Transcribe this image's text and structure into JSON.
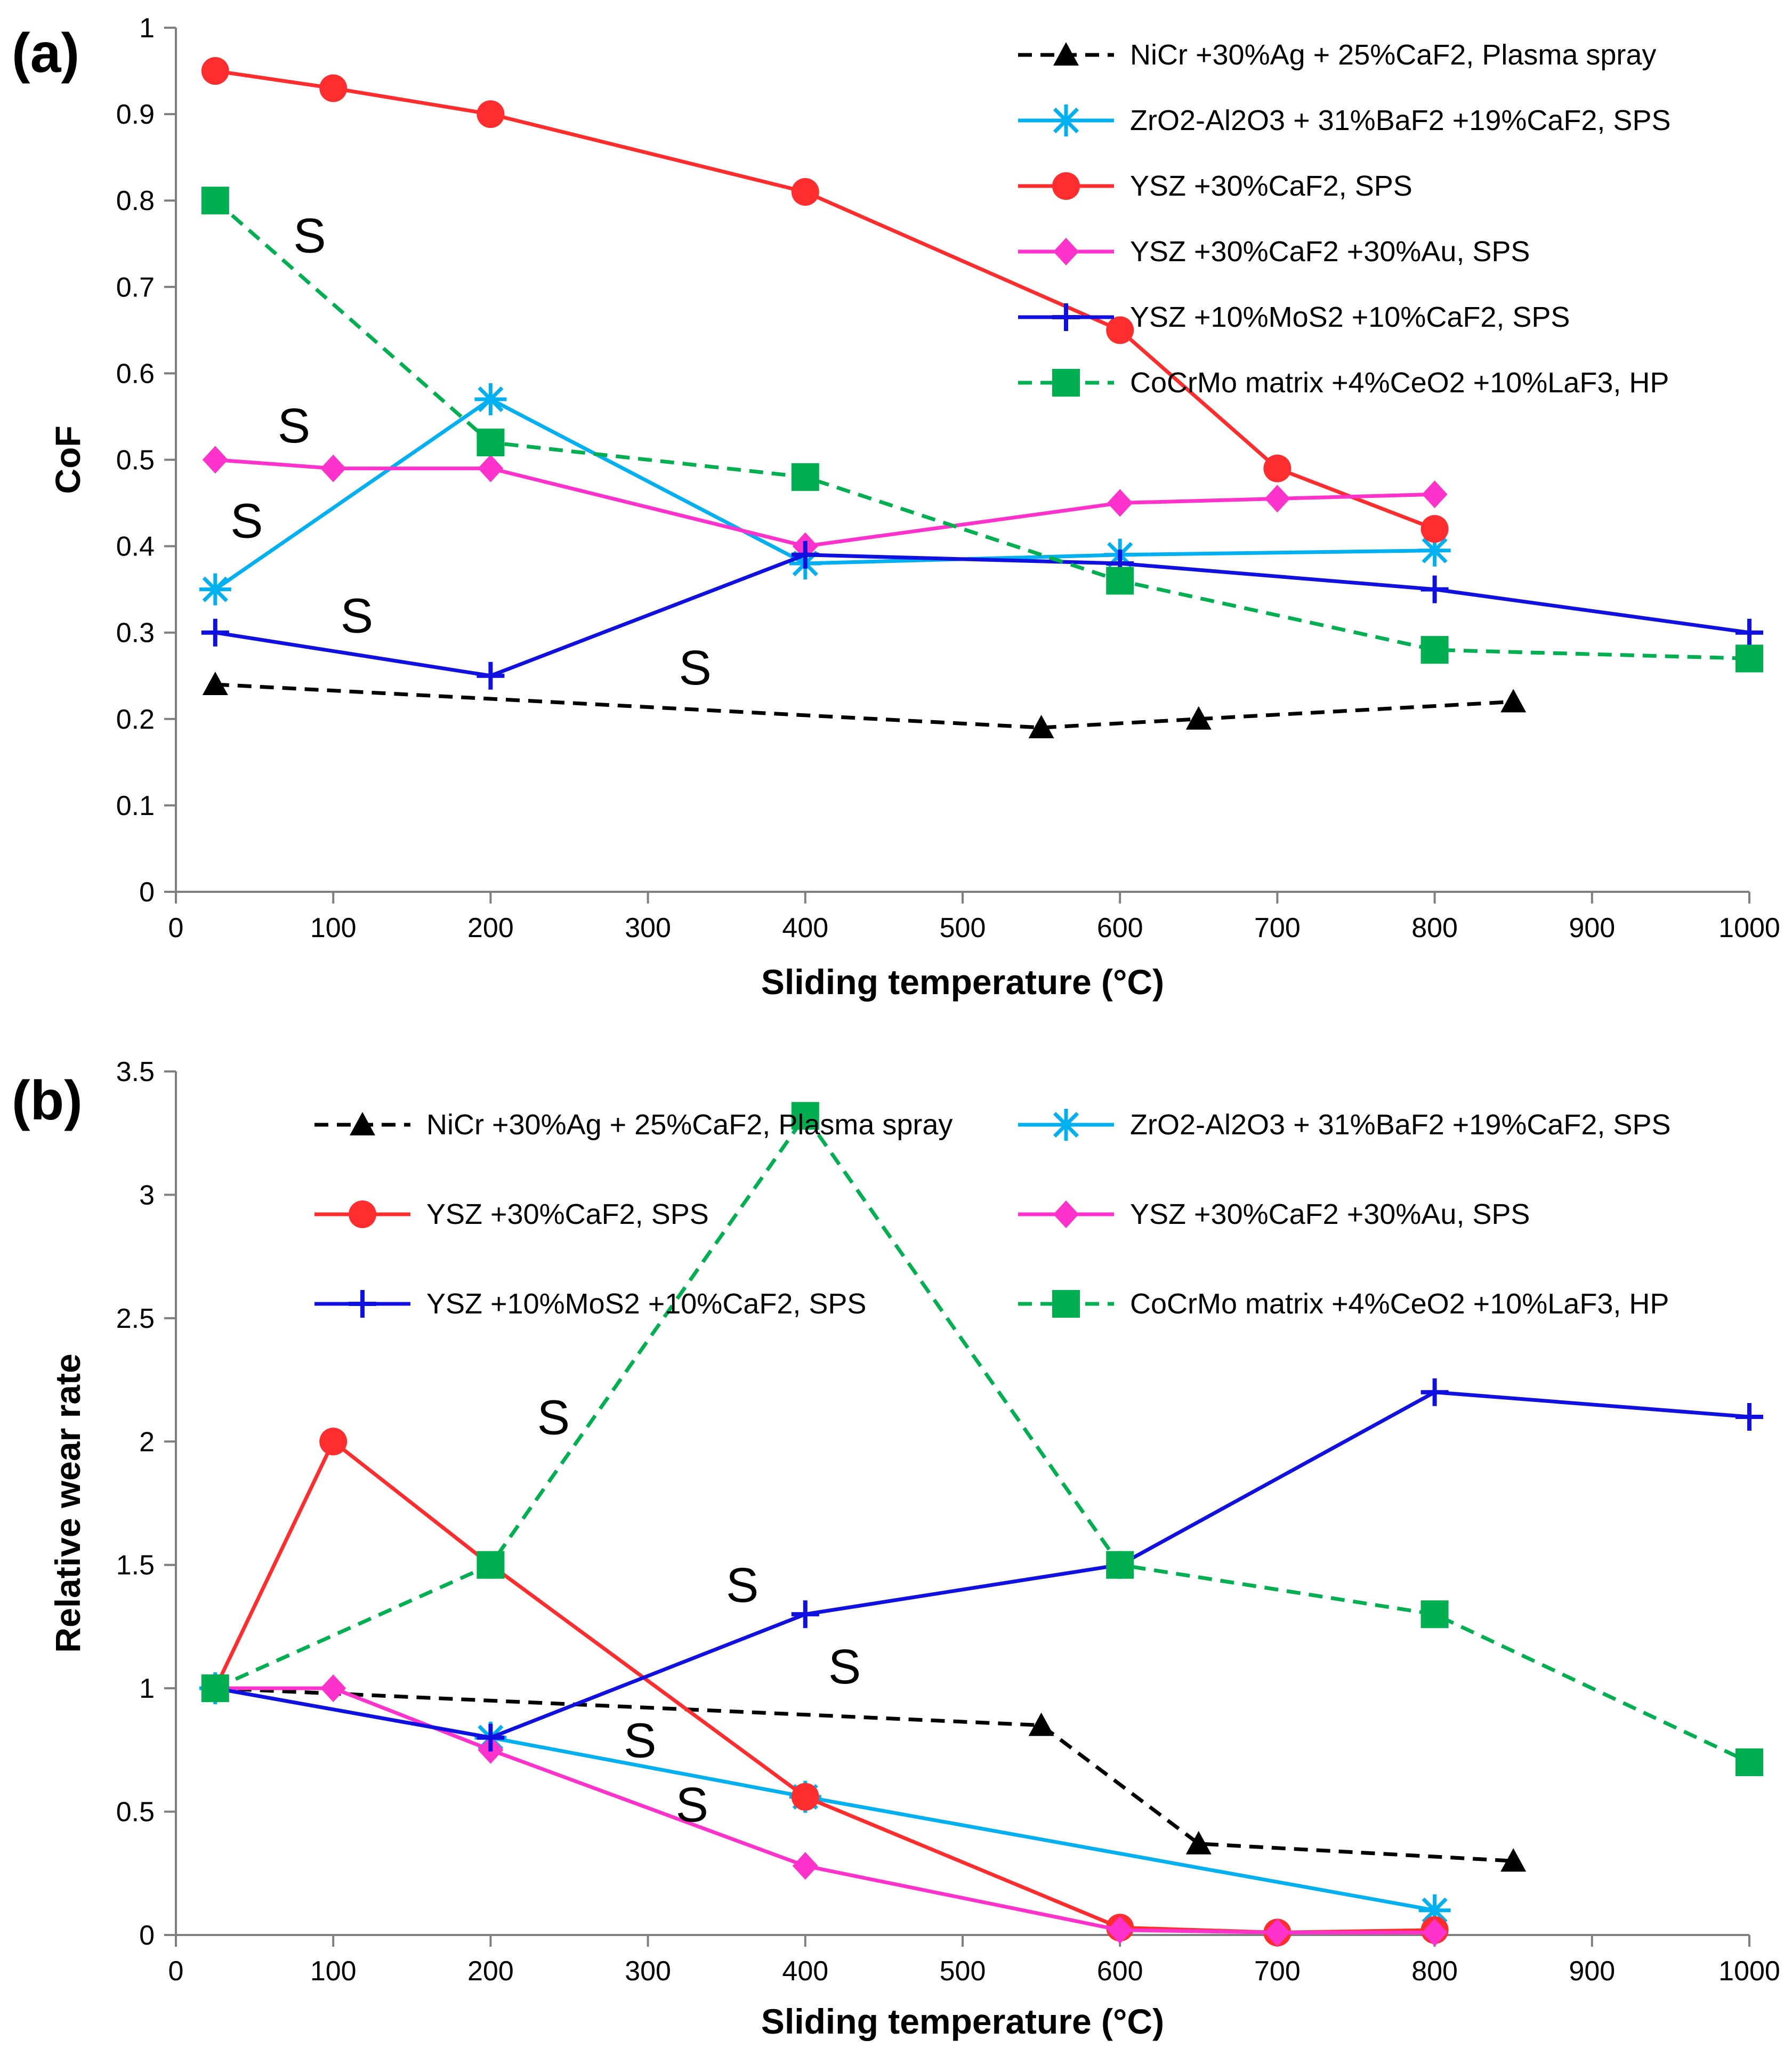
{
  "figure": {
    "panels": [
      "(a)",
      "(b)"
    ]
  },
  "colors": {
    "black": "#000000",
    "cyan": "#00b0f0",
    "red": "#ff2d2d",
    "magenta": "#ff33cc",
    "blue": "#1010e0",
    "green": "#00b050"
  },
  "chart_data": [
    {
      "type": "line",
      "panel_label": "(a)",
      "title": "",
      "xlabel": "Sliding temperature (°C)",
      "ylabel": "CoF",
      "xlim": [
        0,
        1000
      ],
      "ylim": [
        0,
        1
      ],
      "xticks": [
        "0",
        "100",
        "200",
        "300",
        "400",
        "500",
        "600",
        "700",
        "800",
        "900",
        "1000"
      ],
      "yticks": [
        "0",
        "0.1",
        "0.2",
        "0.3",
        "0.4",
        "0.5",
        "0.6",
        "0.7",
        "0.8",
        "0.9",
        "1"
      ],
      "grid": false,
      "legend_position": "top-right",
      "legend_columns": 1,
      "series": [
        {
          "name": "NiCr +30%Ag + 25%CaF2, Plasma spray",
          "color": "#000000",
          "dash": true,
          "marker": "triangle",
          "x": [
            25,
            550,
            650,
            850
          ],
          "y": [
            0.24,
            0.19,
            0.2,
            0.22
          ]
        },
        {
          "name": "ZrO2-Al2O3 + 31%BaF2 +19%CaF2, SPS",
          "color": "#00b0f0",
          "dash": false,
          "marker": "asterisk",
          "x": [
            25,
            200,
            400,
            600,
            800
          ],
          "y": [
            0.35,
            0.57,
            0.38,
            0.39,
            0.395
          ]
        },
        {
          "name": "YSZ +30%CaF2, SPS",
          "color": "#ff2d2d",
          "dash": false,
          "marker": "circle",
          "x": [
            25,
            100,
            200,
            400,
            600,
            700,
            800
          ],
          "y": [
            0.95,
            0.93,
            0.9,
            0.81,
            0.65,
            0.49,
            0.42
          ]
        },
        {
          "name": "YSZ +30%CaF2 +30%Au, SPS",
          "color": "#ff33cc",
          "dash": false,
          "marker": "diamond",
          "x": [
            25,
            100,
            200,
            400,
            600,
            700,
            800
          ],
          "y": [
            0.5,
            0.49,
            0.49,
            0.4,
            0.45,
            0.455,
            0.46
          ]
        },
        {
          "name": "YSZ +10%MoS2 +10%CaF2, SPS",
          "color": "#1010e0",
          "dash": false,
          "marker": "plus",
          "x": [
            25,
            200,
            400,
            600,
            800,
            1000
          ],
          "y": [
            0.3,
            0.25,
            0.39,
            0.38,
            0.35,
            0.3
          ]
        },
        {
          "name": "CoCrMo matrix +4%CeO2 +10%LaF3, HP",
          "color": "#00b050",
          "dash": true,
          "marker": "square",
          "x": [
            25,
            200,
            400,
            600,
            800,
            1000
          ],
          "y": [
            0.8,
            0.52,
            0.48,
            0.36,
            0.28,
            0.27
          ]
        }
      ],
      "annotations": [
        {
          "text": "S",
          "x": 85,
          "y": 0.74
        },
        {
          "text": "S",
          "x": 75,
          "y": 0.52
        },
        {
          "text": "S",
          "x": 45,
          "y": 0.41
        },
        {
          "text": "S",
          "x": 115,
          "y": 0.3
        },
        {
          "text": "S",
          "x": 330,
          "y": 0.24
        }
      ]
    },
    {
      "type": "line",
      "panel_label": "(b)",
      "title": "",
      "xlabel": "Sliding temperature (°C)",
      "ylabel": "Relative wear rate",
      "xlim": [
        0,
        1000
      ],
      "ylim": [
        0,
        3.5
      ],
      "xticks": [
        "0",
        "100",
        "200",
        "300",
        "400",
        "500",
        "600",
        "700",
        "800",
        "900",
        "1000"
      ],
      "yticks": [
        "0",
        "0.5",
        "1",
        "1.5",
        "2",
        "2.5",
        "3",
        "3.5"
      ],
      "grid": false,
      "legend_position": "top",
      "legend_columns": 2,
      "series": [
        {
          "name": "NiCr +30%Ag + 25%CaF2, Plasma spray",
          "color": "#000000",
          "dash": true,
          "marker": "triangle",
          "x": [
            25,
            550,
            650,
            850
          ],
          "y": [
            1.0,
            0.85,
            0.37,
            0.3
          ]
        },
        {
          "name": "ZrO2-Al2O3 + 31%BaF2 +19%CaF2, SPS",
          "color": "#00b0f0",
          "dash": false,
          "marker": "asterisk",
          "x": [
            25,
            200,
            400,
            800
          ],
          "y": [
            1.0,
            0.8,
            0.56,
            0.1
          ]
        },
        {
          "name": "YSZ +30%CaF2, SPS",
          "color": "#ff2d2d",
          "dash": false,
          "marker": "circle",
          "x": [
            25,
            100,
            200,
            400,
            600,
            700,
            800
          ],
          "y": [
            1.0,
            2.0,
            1.5,
            0.56,
            0.03,
            0.01,
            0.02
          ]
        },
        {
          "name": "YSZ +30%CaF2 +30%Au, SPS",
          "color": "#ff33cc",
          "dash": false,
          "marker": "diamond",
          "x": [
            25,
            100,
            200,
            400,
            600,
            700,
            800
          ],
          "y": [
            1.0,
            1.0,
            0.75,
            0.28,
            0.02,
            0.01,
            0.01
          ]
        },
        {
          "name": "YSZ +10%MoS2 +10%CaF2, SPS",
          "color": "#1010e0",
          "dash": false,
          "marker": "plus",
          "x": [
            25,
            200,
            400,
            600,
            800,
            1000
          ],
          "y": [
            1.0,
            0.8,
            1.3,
            1.5,
            2.2,
            2.1
          ]
        },
        {
          "name": "CoCrMo matrix +4%CeO2 +10%LaF3, HP",
          "color": "#00b050",
          "dash": true,
          "marker": "square",
          "x": [
            25,
            200,
            400,
            600,
            800,
            1000
          ],
          "y": [
            1.0,
            1.5,
            3.32,
            1.5,
            1.3,
            0.7
          ]
        }
      ],
      "annotations": [
        {
          "text": "S",
          "x": 240,
          "y": 2.03
        },
        {
          "text": "S",
          "x": 360,
          "y": 1.35
        },
        {
          "text": "S",
          "x": 425,
          "y": 1.02
        },
        {
          "text": "S",
          "x": 295,
          "y": 0.72
        },
        {
          "text": "S",
          "x": 328,
          "y": 0.46
        }
      ]
    }
  ]
}
